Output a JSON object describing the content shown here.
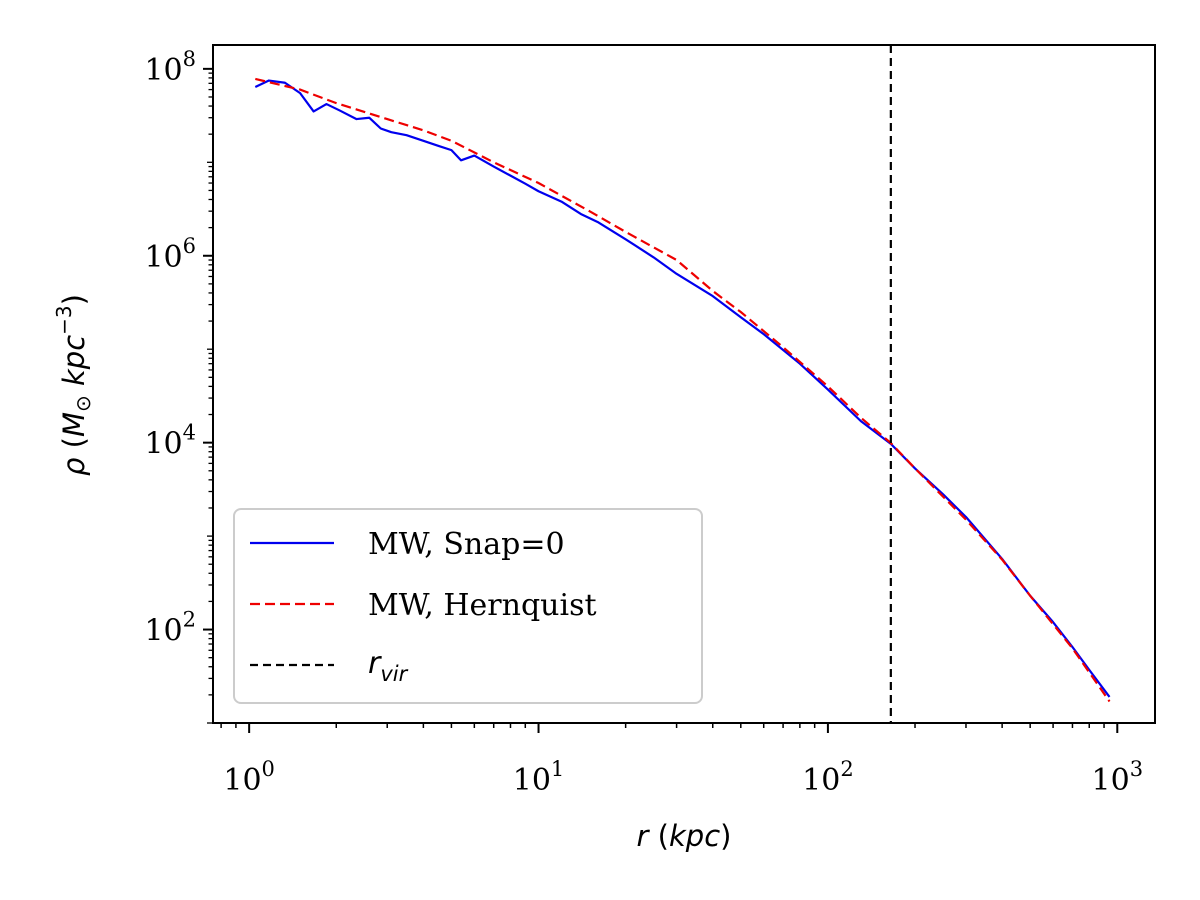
{
  "chart_data": {
    "type": "line",
    "title": "",
    "x_scale": "log",
    "y_scale": "log",
    "xlabel": {
      "symbol": "r",
      "unit": "kpc"
    },
    "ylabel": {
      "symbol": "ρ",
      "unit_main": "M",
      "unit_sub": "⊙",
      "unit_rest": "kpc",
      "unit_exp": "−3"
    },
    "xlim": [
      0.75,
      1350
    ],
    "ylim": [
      10,
      180000000
    ],
    "x_ticks": [
      {
        "value": 1,
        "base": "10",
        "exp": "0"
      },
      {
        "value": 10,
        "base": "10",
        "exp": "1"
      },
      {
        "value": 100,
        "base": "10",
        "exp": "2"
      },
      {
        "value": 1000,
        "base": "10",
        "exp": "3"
      }
    ],
    "y_ticks": [
      {
        "value": 100,
        "base": "10",
        "exp": "2"
      },
      {
        "value": 10000,
        "base": "10",
        "exp": "4"
      },
      {
        "value": 1000000,
        "base": "10",
        "exp": "6"
      },
      {
        "value": 100000000,
        "base": "10",
        "exp": "8"
      }
    ],
    "grid": false,
    "legend_position": "lower-left",
    "series": [
      {
        "name": "MW, Snap=0",
        "color": "#0000ee",
        "style": "solid",
        "x": [
          1.05,
          1.17,
          1.33,
          1.5,
          1.67,
          1.85,
          2.05,
          2.35,
          2.6,
          2.85,
          3.1,
          3.5,
          4.0,
          4.5,
          5.0,
          5.4,
          6.0,
          7.0,
          8.0,
          9.0,
          10,
          12,
          14,
          16,
          20,
          25,
          30,
          40,
          50,
          60,
          80,
          100,
          130,
          165,
          200,
          250,
          300,
          400,
          500,
          600,
          700,
          800,
          940
        ],
        "y": [
          64000000,
          75000000,
          71000000,
          55000000,
          35000000,
          42000000,
          36000000,
          29000000,
          30000000,
          23000000,
          21000000,
          19500000,
          17000000,
          15000000,
          13500000,
          10500000,
          11800000,
          9000000,
          7200000,
          5900000,
          4900000,
          3800000,
          2800000,
          2300000,
          1500000,
          960000,
          640000,
          370000,
          220000,
          145000,
          70000,
          37000,
          17000,
          9700,
          5300,
          2800,
          1600,
          570,
          230,
          120,
          65,
          37,
          19
        ]
      },
      {
        "name": "MW, Hernquist",
        "color": "#ee0000",
        "style": "dashed",
        "x": [
          1.05,
          1.5,
          2,
          3,
          4,
          5,
          7,
          10,
          15,
          20,
          30,
          40,
          50,
          70,
          100,
          130,
          165,
          200,
          300,
          400,
          500,
          700,
          940
        ],
        "y": [
          78000000,
          60000000,
          43000000,
          29000000,
          22000000,
          17000000,
          10000000,
          6000000,
          3000000,
          1800000,
          900000,
          420000,
          250000,
          105000,
          40000,
          18500,
          9900,
          5300,
          1500,
          560,
          230,
          63,
          17
        ]
      },
      {
        "name": "r_vir",
        "label_main": "r",
        "label_sub": "vir",
        "color": "#000000",
        "style": "dashed",
        "vertical_x": 165
      }
    ]
  }
}
